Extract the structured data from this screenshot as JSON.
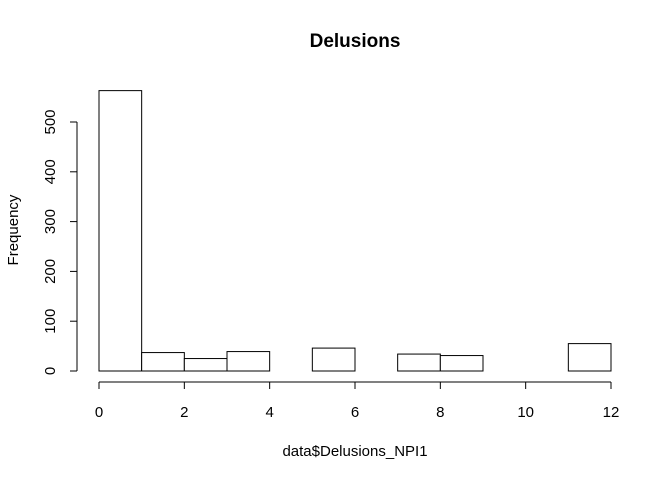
{
  "chart_data": {
    "type": "bar",
    "title": "Delusions",
    "xlabel": "data$Delusions_NPI1",
    "ylabel": "Frequency",
    "bins": [
      {
        "x0": 0,
        "x1": 1,
        "count": 563
      },
      {
        "x0": 1,
        "x1": 2,
        "count": 37
      },
      {
        "x0": 2,
        "x1": 3,
        "count": 25
      },
      {
        "x0": 3,
        "x1": 4,
        "count": 39
      },
      {
        "x0": 4,
        "x1": 5,
        "count": 0
      },
      {
        "x0": 5,
        "x1": 6,
        "count": 46
      },
      {
        "x0": 6,
        "x1": 7,
        "count": 0
      },
      {
        "x0": 7,
        "x1": 8,
        "count": 34
      },
      {
        "x0": 8,
        "x1": 9,
        "count": 31
      },
      {
        "x0": 9,
        "x1": 10,
        "count": 0
      },
      {
        "x0": 10,
        "x1": 11,
        "count": 0
      },
      {
        "x0": 11,
        "x1": 12,
        "count": 55
      }
    ],
    "xlim": [
      0,
      12
    ],
    "ylim": [
      0,
      563
    ],
    "xticks": [
      0,
      2,
      4,
      6,
      8,
      10,
      12
    ],
    "yticks": [
      0,
      100,
      200,
      300,
      400,
      500
    ],
    "grid": false,
    "bar_fill": "#ffffff",
    "bar_stroke": "#000000"
  }
}
